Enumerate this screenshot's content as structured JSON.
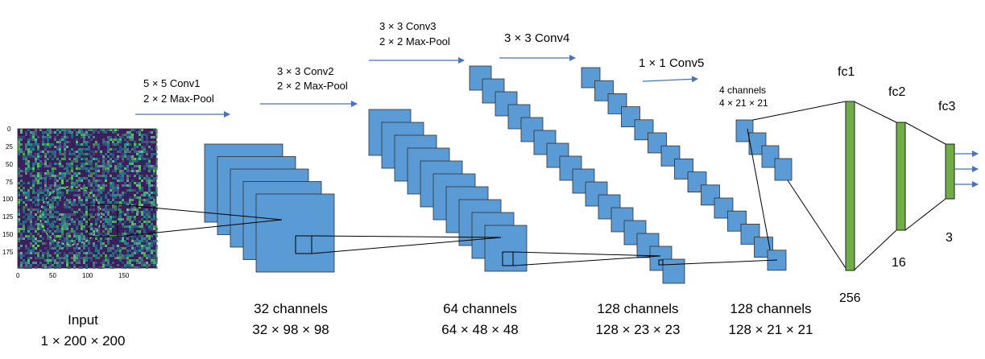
{
  "colors": {
    "block": "#5b9bd5",
    "block_stroke": "#2f2f2f",
    "fc_bar": "#70ad47",
    "arrow": "#4472c4",
    "noise_dark": "#3b1f5c",
    "noise_mid": "#2d6f8e",
    "noise_light": "#4dbb8a"
  },
  "input": {
    "caption_title": "Input",
    "caption_dims": "1 × 200 × 200",
    "y_ticks": [
      "0",
      "25",
      "50",
      "75",
      "100",
      "125",
      "150",
      "175"
    ],
    "x_ticks": [
      "0",
      "50",
      "100",
      "150"
    ]
  },
  "ops": {
    "conv1_line1": "5 × 5 Conv1",
    "conv1_line2": "2 × 2 Max-Pool",
    "conv2_line1": "3 × 3 Conv2",
    "conv2_line2": "2 × 2 Max-Pool",
    "conv3_line1": "3 × 3 Conv3",
    "conv3_line2": "2 × 2 Max-Pool",
    "conv4_line1": "3 × 3 Conv4",
    "conv5_line1": "1 × 1 Conv5"
  },
  "layers": {
    "l1_channels": "32 channels",
    "l1_dims": "32 × 98 × 98",
    "l2_channels": "64 channels",
    "l2_dims": "64 × 48 × 48",
    "l3_channels": "128 channels",
    "l3_dims": "128 × 23 × 23",
    "l4_channels": "128 channels",
    "l4_dims": "128 × 21 × 21",
    "l5_channels": "4 channels",
    "l5_dims": "4 × 21 × 21"
  },
  "fc": {
    "fc1_label": "fc1",
    "fc1_size": "256",
    "fc2_label": "fc2",
    "fc2_size": "16",
    "fc3_label": "fc3",
    "fc3_size": "3"
  }
}
